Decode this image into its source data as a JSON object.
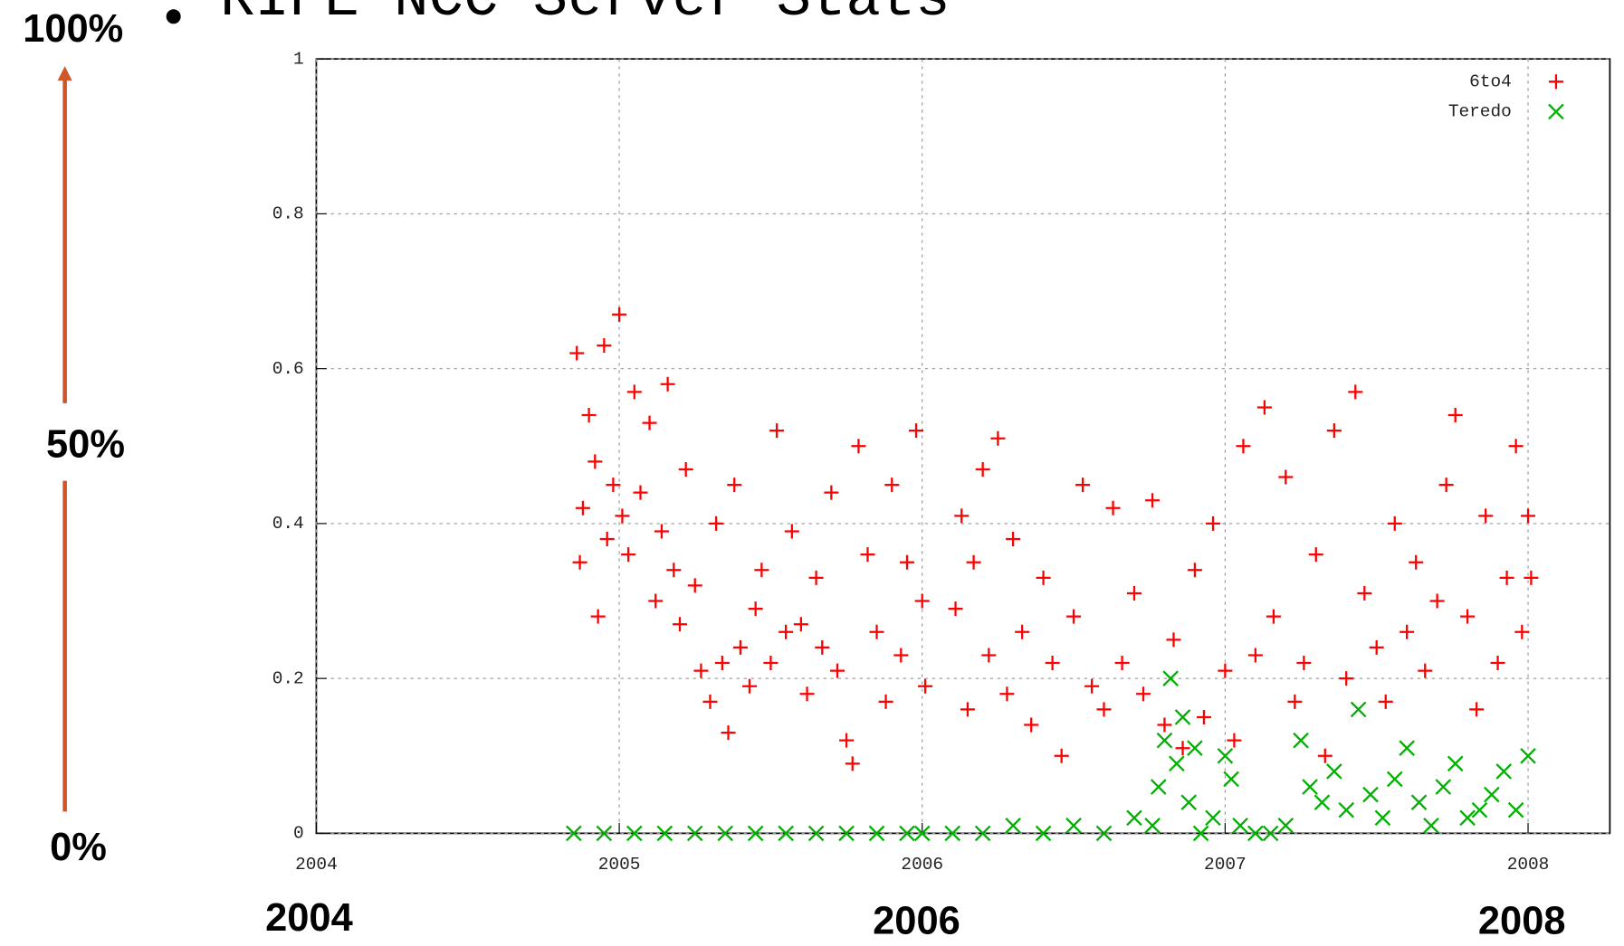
{
  "chart_data": {
    "type": "scatter",
    "title": "RIPE NCC Server Stats",
    "annotations": [
      "100%",
      "50%",
      "0%",
      "2004",
      "2006",
      "2008"
    ],
    "xlim": [
      2004,
      2008.27
    ],
    "ylim": [
      0,
      1
    ],
    "xticks": [
      2004,
      2005,
      2006,
      2007,
      2008
    ],
    "yticks": [
      0,
      0.2,
      0.4,
      0.6,
      0.8,
      1
    ],
    "grid": true,
    "legend": "top-right",
    "series": [
      {
        "name": "6to4",
        "color": "#ff0000",
        "marker": "plus",
        "x": [
          2004.86,
          2004.87,
          2004.88,
          2004.9,
          2004.92,
          2004.93,
          2004.95,
          2004.96,
          2004.98,
          2005.0,
          2005.01,
          2005.03,
          2005.05,
          2005.07,
          2005.1,
          2005.12,
          2005.14,
          2005.16,
          2005.18,
          2005.2,
          2005.22,
          2005.25,
          2005.27,
          2005.3,
          2005.32,
          2005.34,
          2005.36,
          2005.38,
          2005.4,
          2005.43,
          2005.45,
          2005.47,
          2005.5,
          2005.52,
          2005.55,
          2005.57,
          2005.6,
          2005.62,
          2005.65,
          2005.67,
          2005.7,
          2005.72,
          2005.75,
          2005.77,
          2005.79,
          2005.82,
          2005.85,
          2005.88,
          2005.9,
          2005.93,
          2005.95,
          2005.98,
          2006.0,
          2006.01,
          2006.11,
          2006.13,
          2006.15,
          2006.17,
          2006.2,
          2006.22,
          2006.25,
          2006.28,
          2006.3,
          2006.33,
          2006.36,
          2006.4,
          2006.43,
          2006.46,
          2006.5,
          2006.53,
          2006.56,
          2006.6,
          2006.63,
          2006.66,
          2006.7,
          2006.73,
          2006.76,
          2006.8,
          2006.83,
          2006.86,
          2006.9,
          2006.93,
          2006.96,
          2007.0,
          2007.03,
          2007.06,
          2007.1,
          2007.13,
          2007.16,
          2007.2,
          2007.23,
          2007.26,
          2007.3,
          2007.33,
          2007.36,
          2007.4,
          2007.43,
          2007.46,
          2007.5,
          2007.53,
          2007.56,
          2007.6,
          2007.63,
          2007.66,
          2007.7,
          2007.73,
          2007.76,
          2007.8,
          2007.83,
          2007.86,
          2007.9,
          2007.93,
          2007.96,
          2007.98,
          2008.0,
          2008.01
        ],
        "values": [
          0.62,
          0.35,
          0.42,
          0.54,
          0.48,
          0.28,
          0.63,
          0.38,
          0.45,
          0.67,
          0.41,
          0.36,
          0.57,
          0.44,
          0.53,
          0.3,
          0.39,
          0.58,
          0.34,
          0.27,
          0.47,
          0.32,
          0.21,
          0.17,
          0.4,
          0.22,
          0.13,
          0.45,
          0.24,
          0.19,
          0.29,
          0.34,
          0.22,
          0.52,
          0.26,
          0.39,
          0.27,
          0.18,
          0.33,
          0.24,
          0.44,
          0.21,
          0.12,
          0.09,
          0.5,
          0.36,
          0.26,
          0.17,
          0.45,
          0.23,
          0.35,
          0.52,
          0.3,
          0.19,
          0.29,
          0.41,
          0.16,
          0.35,
          0.47,
          0.23,
          0.51,
          0.18,
          0.38,
          0.26,
          0.14,
          0.33,
          0.22,
          0.1,
          0.28,
          0.45,
          0.19,
          0.16,
          0.42,
          0.22,
          0.31,
          0.18,
          0.43,
          0.14,
          0.25,
          0.11,
          0.34,
          0.15,
          0.4,
          0.21,
          0.12,
          0.5,
          0.23,
          0.55,
          0.28,
          0.46,
          0.17,
          0.22,
          0.36,
          0.1,
          0.52,
          0.2,
          0.57,
          0.31,
          0.24,
          0.17,
          0.4,
          0.26,
          0.35,
          0.21,
          0.3,
          0.45,
          0.54,
          0.28,
          0.16,
          0.41,
          0.22,
          0.33,
          0.5,
          0.26,
          0.41,
          0.33
        ]
      },
      {
        "name": "Teredo",
        "color": "#00b000",
        "marker": "cross",
        "x": [
          2004.85,
          2004.95,
          2005.05,
          2005.15,
          2005.25,
          2005.35,
          2005.45,
          2005.55,
          2005.65,
          2005.75,
          2005.85,
          2005.95,
          2006.0,
          2006.1,
          2006.2,
          2006.3,
          2006.4,
          2006.5,
          2006.6,
          2006.7,
          2006.76,
          2006.78,
          2006.8,
          2006.82,
          2006.84,
          2006.86,
          2006.88,
          2006.9,
          2006.92,
          2006.96,
          2007.0,
          2007.02,
          2007.05,
          2007.1,
          2007.15,
          2007.2,
          2007.25,
          2007.28,
          2007.32,
          2007.36,
          2007.4,
          2007.44,
          2007.48,
          2007.52,
          2007.56,
          2007.6,
          2007.64,
          2007.68,
          2007.72,
          2007.76,
          2007.8,
          2007.84,
          2007.88,
          2007.92,
          2007.96,
          2008.0
        ],
        "values": [
          0,
          0,
          0,
          0,
          0,
          0,
          0,
          0,
          0,
          0,
          0,
          0,
          0,
          0,
          0,
          0.01,
          0,
          0.01,
          0,
          0.02,
          0.01,
          0.06,
          0.12,
          0.2,
          0.09,
          0.15,
          0.04,
          0.11,
          0,
          0.02,
          0.1,
          0.07,
          0.01,
          0,
          0,
          0.01,
          0.12,
          0.06,
          0.04,
          0.08,
          0.03,
          0.16,
          0.05,
          0.02,
          0.07,
          0.11,
          0.04,
          0.01,
          0.06,
          0.09,
          0.02,
          0.03,
          0.05,
          0.08,
          0.03,
          0.1
        ]
      }
    ]
  }
}
